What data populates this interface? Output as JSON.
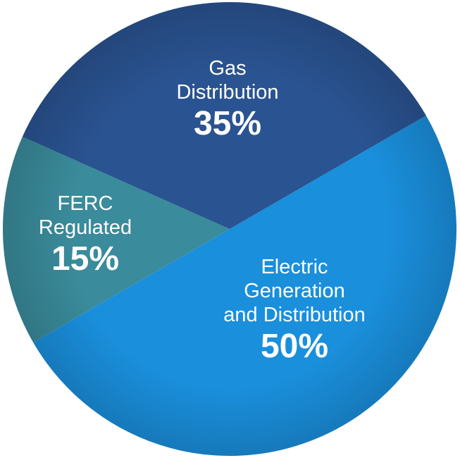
{
  "chart_data": {
    "type": "pie",
    "categories": [
      "Electric\nGeneration\nand Distribution",
      "FERC\nRegulated",
      "Gas\nDistribution"
    ],
    "values": [
      50,
      15,
      35
    ],
    "value_labels": [
      "50%",
      "15%",
      "35%"
    ],
    "colors": [
      "#1a8fdc",
      "#3a8b9b",
      "#2a5391"
    ]
  }
}
